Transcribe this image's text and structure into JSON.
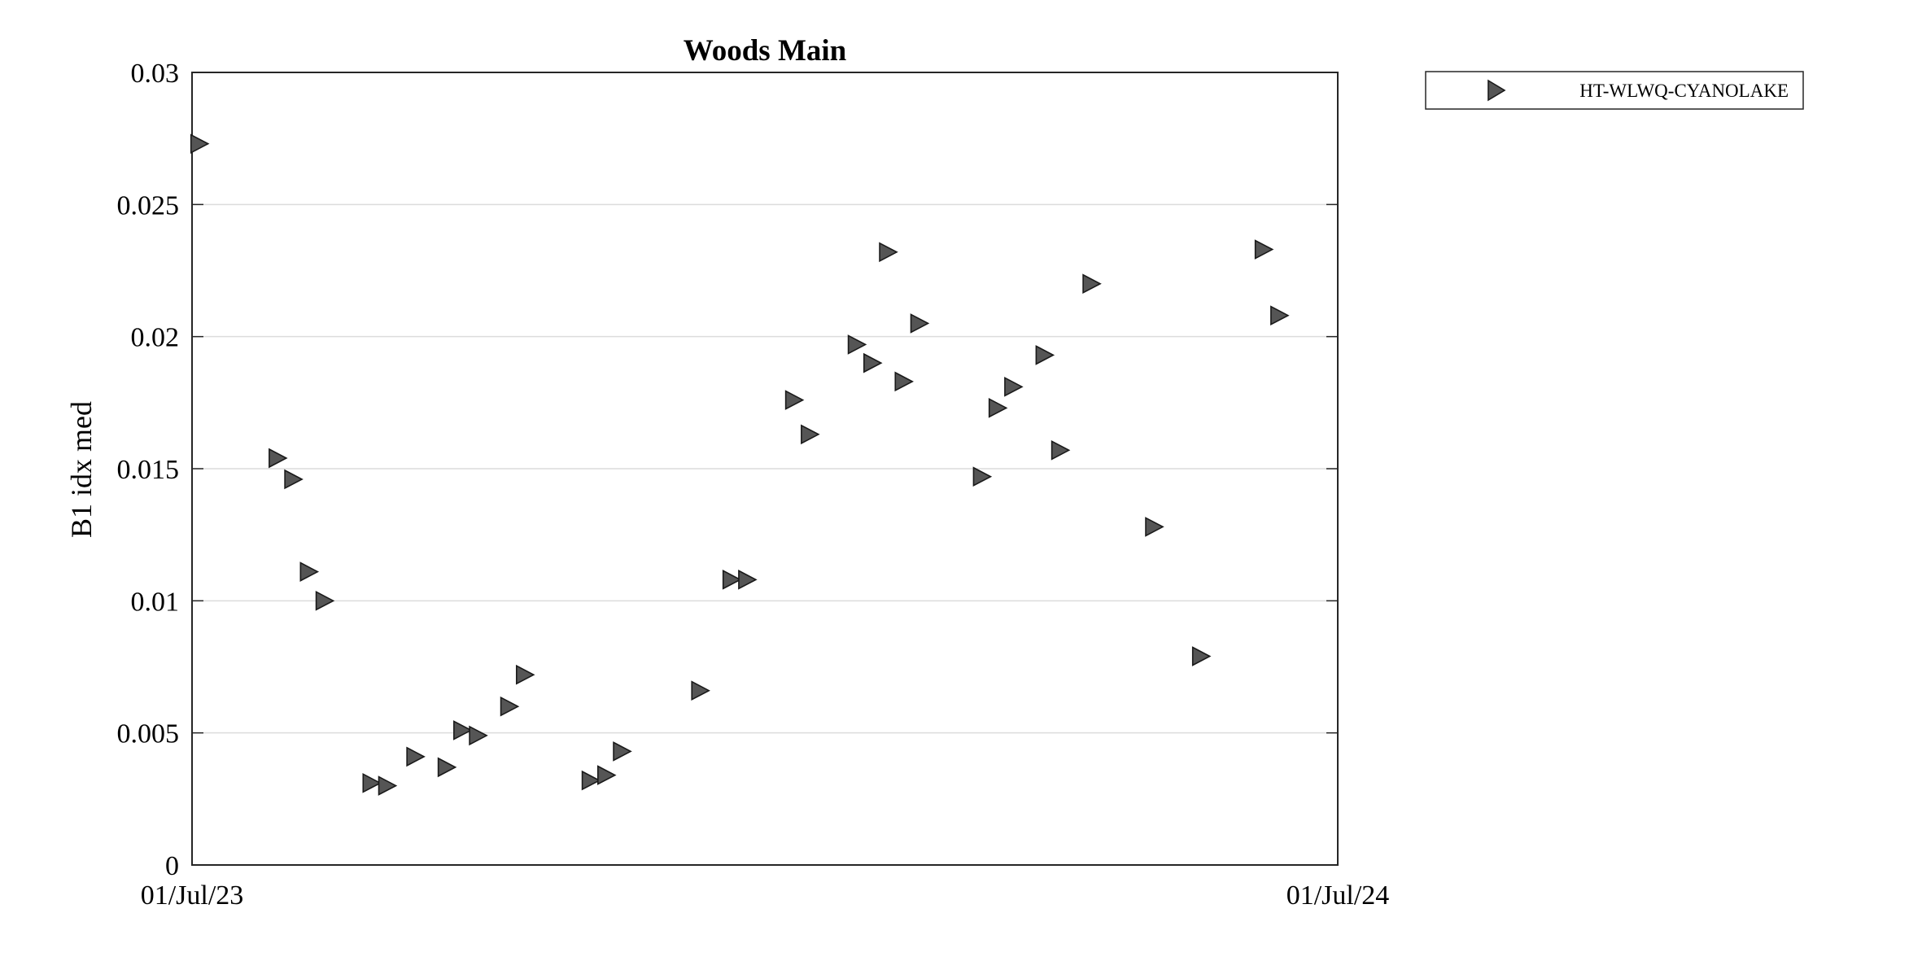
{
  "chart_data": {
    "type": "scatter",
    "title": "Woods Main",
    "xlabel": "",
    "ylabel": "B1 idx med",
    "xlim": [
      "2023-07-01",
      "2024-07-01"
    ],
    "ylim": [
      0,
      0.03
    ],
    "x_ticks": [
      "01/Jul/23",
      "01/Jul/24"
    ],
    "y_ticks": [
      {
        "value": 0,
        "label": "0"
      },
      {
        "value": 0.005,
        "label": "0.005"
      },
      {
        "value": 0.01,
        "label": "0.01"
      },
      {
        "value": 0.015,
        "label": "0.015"
      },
      {
        "value": 0.02,
        "label": "0.02"
      },
      {
        "value": 0.025,
        "label": "0.025"
      },
      {
        "value": 0.03,
        "label": "0.03"
      }
    ],
    "grid": "horizontal",
    "legend_position": "outside-top-right",
    "marker": "triangle-right",
    "marker_color": "#555555",
    "series": [
      {
        "name": "HT-WLWQ-CYANOLAKE",
        "points": [
          {
            "x": "2023-07-03",
            "y": 0.0273
          },
          {
            "x": "2023-07-28",
            "y": 0.0154
          },
          {
            "x": "2023-08-02",
            "y": 0.0146
          },
          {
            "x": "2023-08-07",
            "y": 0.0111
          },
          {
            "x": "2023-08-12",
            "y": 0.01
          },
          {
            "x": "2023-08-27",
            "y": 0.0031
          },
          {
            "x": "2023-09-01",
            "y": 0.003
          },
          {
            "x": "2023-09-10",
            "y": 0.0041
          },
          {
            "x": "2023-09-20",
            "y": 0.0037
          },
          {
            "x": "2023-09-25",
            "y": 0.0051
          },
          {
            "x": "2023-09-30",
            "y": 0.0049
          },
          {
            "x": "2023-10-10",
            "y": 0.006
          },
          {
            "x": "2023-10-15",
            "y": 0.0072
          },
          {
            "x": "2023-11-05",
            "y": 0.0032
          },
          {
            "x": "2023-11-10",
            "y": 0.0034
          },
          {
            "x": "2023-11-15",
            "y": 0.0043
          },
          {
            "x": "2023-12-10",
            "y": 0.0066
          },
          {
            "x": "2023-12-20",
            "y": 0.0108
          },
          {
            "x": "2023-12-25",
            "y": 0.0108
          },
          {
            "x": "2024-01-09",
            "y": 0.0176
          },
          {
            "x": "2024-01-14",
            "y": 0.0163
          },
          {
            "x": "2024-01-29",
            "y": 0.0197
          },
          {
            "x": "2024-02-03",
            "y": 0.019
          },
          {
            "x": "2024-02-08",
            "y": 0.0232
          },
          {
            "x": "2024-02-13",
            "y": 0.0183
          },
          {
            "x": "2024-02-18",
            "y": 0.0205
          },
          {
            "x": "2024-03-09",
            "y": 0.0147
          },
          {
            "x": "2024-03-14",
            "y": 0.0173
          },
          {
            "x": "2024-03-19",
            "y": 0.0181
          },
          {
            "x": "2024-03-29",
            "y": 0.0193
          },
          {
            "x": "2024-04-03",
            "y": 0.0157
          },
          {
            "x": "2024-04-13",
            "y": 0.022
          },
          {
            "x": "2024-05-03",
            "y": 0.0128
          },
          {
            "x": "2024-05-18",
            "y": 0.0079
          },
          {
            "x": "2024-06-07",
            "y": 0.0233
          },
          {
            "x": "2024-06-12",
            "y": 0.0208
          }
        ]
      }
    ]
  }
}
